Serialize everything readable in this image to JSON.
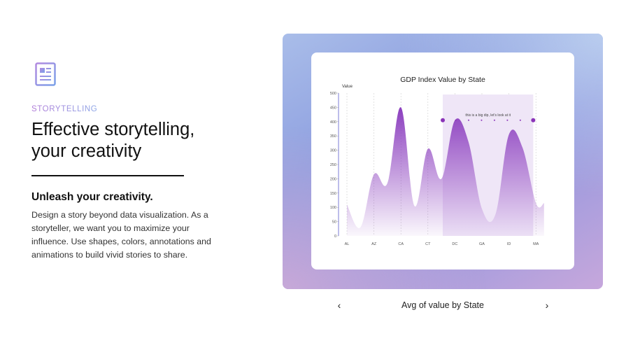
{
  "feature": {
    "eyebrow": "STORYTELLING",
    "headline_line1": "Effective storytelling,",
    "headline_line2": "your creativity",
    "subhead": "Unleash your creativity.",
    "body": "Design a story beyond data visualization. As a storyteller, we want you to maximize your influence. Use shapes, colors, annotations and animations to build vivid stories to share.",
    "icon": "document-icon"
  },
  "carousel": {
    "caption": "Avg of value by State",
    "prev_icon": "chevron-left-icon",
    "next_icon": "chevron-right-icon",
    "prev_label": "‹",
    "next_label": "›"
  },
  "chart_data": {
    "type": "area",
    "title": "GDP Index Value by State",
    "ylabel": "Value",
    "xlabel": "",
    "ylim": [
      0,
      500
    ],
    "yticks": [
      0,
      50,
      100,
      150,
      200,
      250,
      300,
      350,
      400,
      450,
      500
    ],
    "categories": [
      "AL",
      "AZ",
      "CA",
      "CT",
      "DC",
      "GA",
      "ID",
      "MA"
    ],
    "x": [
      0,
      0.5,
      1,
      1.5,
      2,
      2.5,
      3,
      3.5,
      4,
      4.5,
      5,
      5.5,
      6,
      6.5,
      7,
      7.3
    ],
    "values": [
      110,
      30,
      215,
      185,
      450,
      105,
      305,
      200,
      405,
      330,
      95,
      75,
      355,
      310,
      115,
      115
    ],
    "highlight": {
      "from": 3.55,
      "to": 6.9
    },
    "annotation": "this is a big dip, let's look at it",
    "colors": {
      "fill_top": "#8c3fbf",
      "highlight": "#efe6f7",
      "marker": "#8a33b8"
    }
  }
}
